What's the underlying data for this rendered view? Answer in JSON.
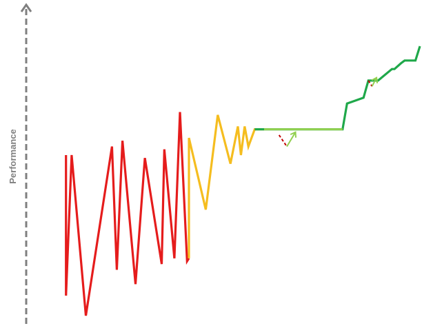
{
  "chart_data": {
    "type": "line",
    "ylabel": "Performance",
    "xlim": [
      0,
      100
    ],
    "ylim": [
      0,
      100
    ],
    "grid": false,
    "legend": "none",
    "colors": {
      "axis": "#7f7f7f",
      "red": "#e51c1c",
      "yellow": "#f5bd1f",
      "green": "#1fa84a",
      "light_green": "#92d050",
      "dashed_red": "#c00000"
    },
    "series": [
      {
        "color": "red",
        "x": [
          5.3,
          5.3,
          6.8,
          10.6,
          17.6,
          18.9,
          20.4,
          23.9,
          26.4,
          30.9,
          31.6,
          34.3,
          35.8,
          37.7,
          38.2
        ],
        "y": [
          56,
          7,
          56,
          0,
          59,
          16,
          61,
          11,
          55,
          18,
          58,
          20,
          71,
          19,
          20
        ]
      },
      {
        "color": "yellow",
        "x": [
          38.2,
          38.2,
          42.7,
          45.9,
          49.3,
          51.3,
          52.1,
          53.1,
          54.1,
          55.8,
          58.3
        ],
        "y": [
          20,
          62,
          37,
          70,
          53,
          66,
          56,
          66,
          59,
          65,
          65
        ]
      },
      {
        "color": "green",
        "x": [
          55.8,
          79.3,
          80.5,
          84.9,
          86.2,
          87.6,
          88.8,
          92.5,
          93.2,
          94.9,
          95.9,
          97.1,
          98.8,
          100
        ],
        "y": [
          65,
          65,
          74,
          76,
          82,
          82,
          82,
          86,
          86,
          88,
          89,
          89,
          89,
          94
        ]
      }
    ],
    "overlays": [
      {
        "color": "light_green",
        "style": "solid",
        "x": [
          58.3,
          79.3
        ],
        "y": [
          65,
          65
        ]
      },
      {
        "color": "dashed_red",
        "style": "dashed",
        "x": [
          62.3,
          64.4
        ],
        "y": [
          63,
          59
        ]
      },
      {
        "color": "light_green",
        "style": "arrow",
        "x": [
          64.4,
          66.7
        ],
        "y": [
          59,
          64
        ]
      },
      {
        "color": "dashed_red",
        "style": "dashed",
        "x": [
          86.2,
          87.2
        ],
        "y": [
          82,
          80
        ]
      },
      {
        "color": "light_green",
        "style": "arrow",
        "x": [
          87.2,
          88.4
        ],
        "y": [
          80,
          83
        ]
      }
    ]
  }
}
